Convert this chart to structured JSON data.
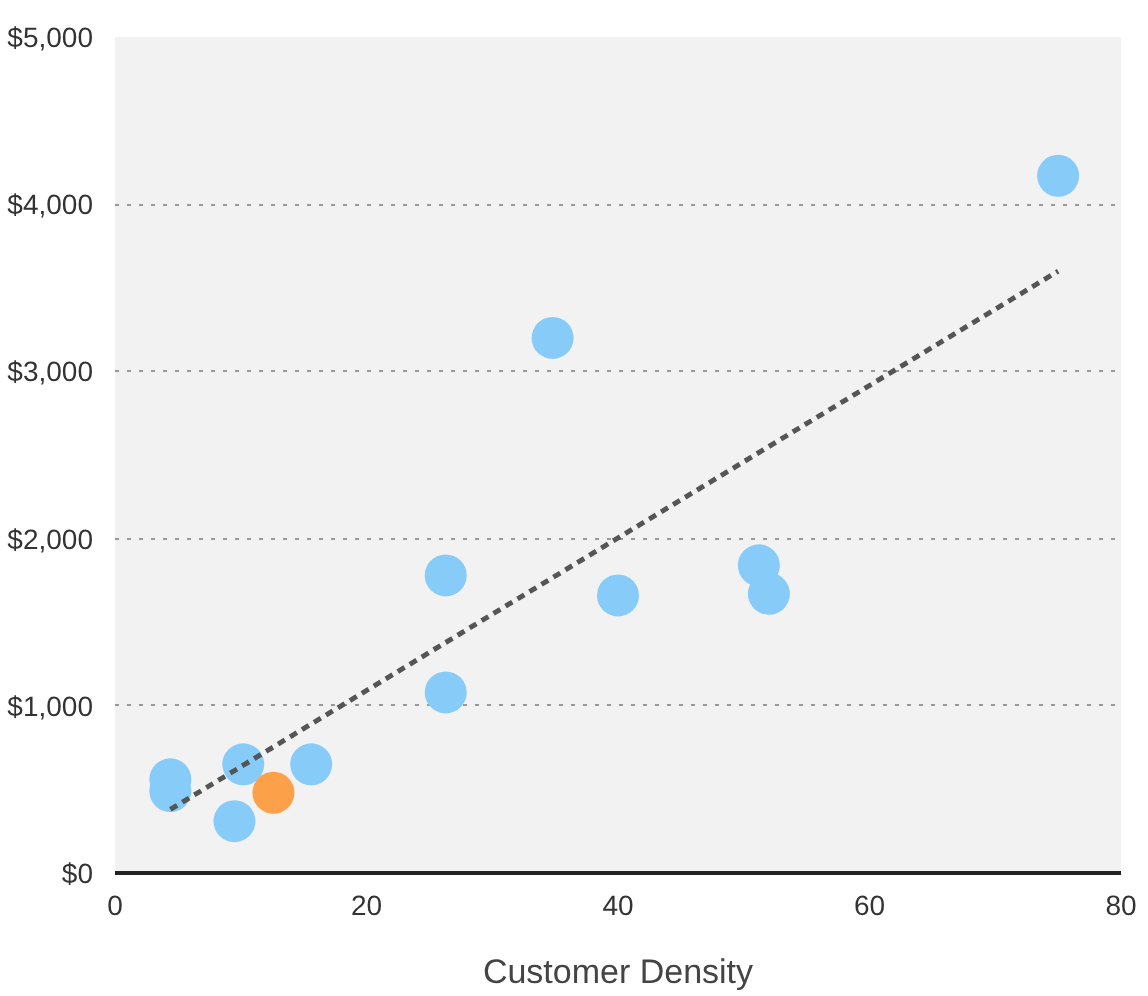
{
  "chart_data": {
    "type": "scatter",
    "xlabel": "Customer Density",
    "marker": "circle",
    "grid": "y",
    "xlim": [
      0,
      80
    ],
    "xticks": [
      0,
      20,
      40,
      60,
      80
    ],
    "ylim": [
      0,
      5000
    ],
    "yticks": [
      {
        "value": 0,
        "label": "$0"
      },
      {
        "value": 1000,
        "label": "$1,000"
      },
      {
        "value": 2000,
        "label": "$2,000"
      },
      {
        "value": 3000,
        "label": "$3,000"
      },
      {
        "value": 4000,
        "label": "$4,000"
      },
      {
        "value": 5000,
        "label": "$5,000"
      }
    ],
    "series": [
      {
        "color": "#87cbf8",
        "x": [
          75.0,
          34.8,
          26.3,
          40.0,
          51.2,
          52.0,
          26.3,
          4.4,
          4.4,
          10.2,
          15.6,
          9.5
        ],
        "values": [
          4170,
          3200,
          1780,
          1660,
          1840,
          1670,
          1080,
          560,
          490,
          650,
          650,
          310
        ]
      },
      {
        "color": "#fda04a",
        "x": [
          12.6
        ],
        "values": [
          480
        ]
      },
      {
        "type": "line",
        "line_style": "dashed",
        "marker": "none",
        "color": "#555555",
        "x": [
          4.4,
          75.0
        ],
        "values": [
          380,
          3600
        ]
      }
    ]
  }
}
